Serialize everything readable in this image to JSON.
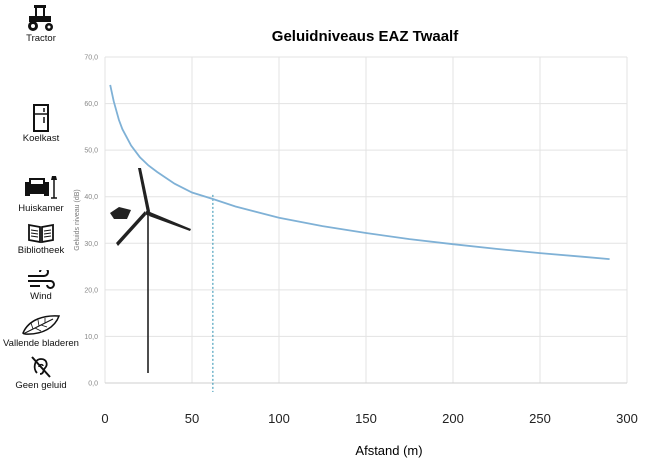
{
  "chart_data": {
    "type": "line",
    "title": "Geluidniveaus EAZ Twaalf",
    "xlabel": "Afstand (m)",
    "ylabel": "Geluids niveau (dB)",
    "xlim": [
      0,
      300
    ],
    "ylim": [
      0,
      70
    ],
    "x_ticks": [
      "0",
      "50",
      "100",
      "150",
      "200",
      "250",
      "300"
    ],
    "y_ticks": [
      "0,0",
      "10,0",
      "20,0",
      "30,0",
      "40,0",
      "50,0",
      "60,0",
      "70,0"
    ],
    "grid": true,
    "reference_line_x": 62,
    "series": [
      {
        "color": "#7fb1d6",
        "x": [
          3,
          5,
          8,
          10,
          15,
          20,
          25,
          30,
          40,
          50,
          62,
          75,
          100,
          125,
          150,
          175,
          200,
          225,
          250,
          275,
          290
        ],
        "y": [
          64,
          60.5,
          56.5,
          54.5,
          51,
          48.5,
          46.7,
          45.3,
          42.8,
          40.9,
          39.5,
          37.9,
          35.5,
          33.7,
          32.2,
          30.9,
          29.8,
          28.8,
          27.9,
          27.1,
          26.6
        ]
      }
    ]
  },
  "legend_icons": [
    {
      "label": "Tractor",
      "icon": "tractor-icon",
      "level": 70
    },
    {
      "label": "Koelkast",
      "icon": "fridge-icon",
      "level": 55
    },
    {
      "label": "Huiskamer",
      "icon": "living-room-icon",
      "level": 40
    },
    {
      "label": "Bibliotheek",
      "icon": "library-book-icon",
      "level": 30
    },
    {
      "label": "Wind",
      "icon": "wind-icon",
      "level": 20
    },
    {
      "label": "Vallende bladeren",
      "icon": "leaf-icon",
      "level": 10
    },
    {
      "label": "Geen geluid",
      "icon": "no-sound-icon",
      "level": 0
    }
  ],
  "turbine_icon": "wind-turbine-icon"
}
